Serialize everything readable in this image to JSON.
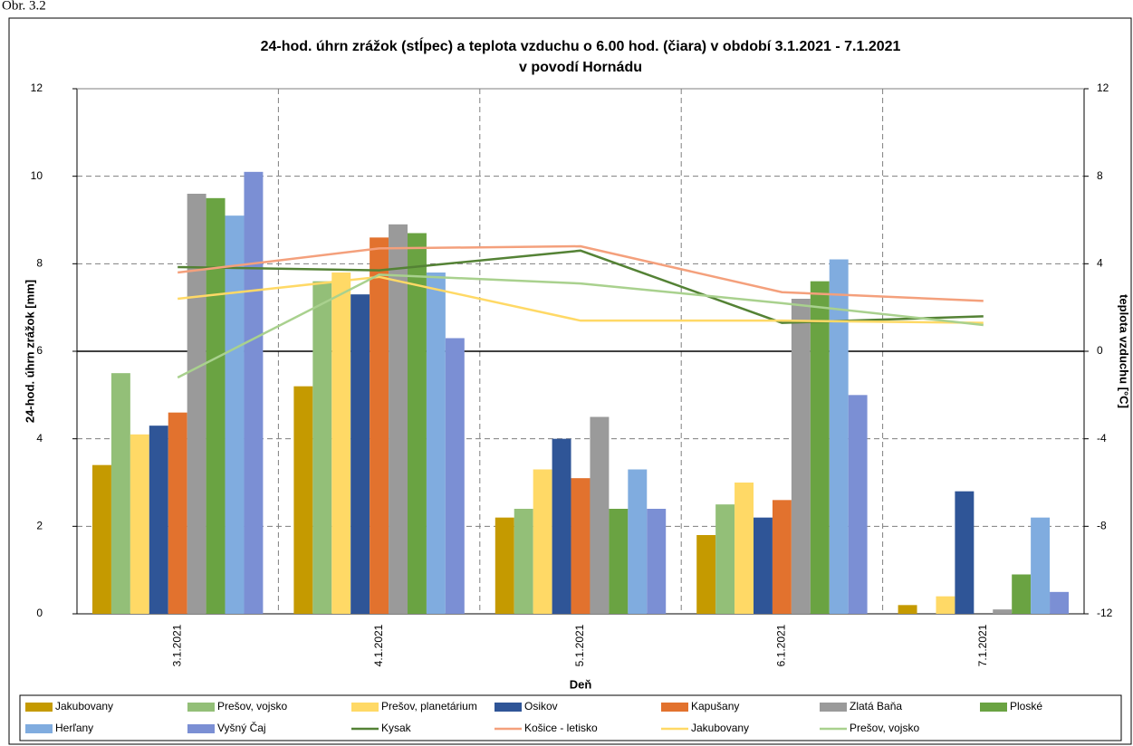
{
  "figure_label": "Obr. 3.2",
  "chart_data": {
    "type": "bar",
    "title": [
      "24-hod. úhrn zrážok (stĺpec) a teplota vzduchu o 6.00 hod. (čiara) v období 3.1.2021 - 7.1.2021",
      "v povodí  Hornádu"
    ],
    "x_label": "Deň",
    "y_label": "24-hod. úhrn zrážok [mm]",
    "y2_label": "teplota vzduchu [°C]",
    "categories": [
      "3.1.2021",
      "4.1.2021",
      "5.1.2021",
      "6.1.2021",
      "7.1.2021"
    ],
    "ylim": [
      0,
      12
    ],
    "yticks": [
      0,
      2,
      4,
      6,
      8,
      10,
      12
    ],
    "y2lim": [
      -12,
      12
    ],
    "y2ticks": [
      12,
      8,
      4,
      0,
      -4,
      -8,
      -12
    ],
    "grid": true,
    "legend": "bottom",
    "series": [
      {
        "name": "Jakubovany",
        "type": "bar",
        "color": "#c59a00",
        "values": [
          3.4,
          5.2,
          2.2,
          1.8,
          0.2
        ]
      },
      {
        "name": "Prešov, vojsko",
        "type": "bar",
        "color": "#93bf78",
        "values": [
          5.5,
          7.6,
          2.4,
          2.5,
          0
        ]
      },
      {
        "name": "Prešov, planetárium",
        "type": "bar",
        "color": "#ffd966",
        "values": [
          4.1,
          7.8,
          3.3,
          3.0,
          0.4
        ]
      },
      {
        "name": "Osikov",
        "type": "bar",
        "color": "#2f5597",
        "values": [
          4.3,
          7.3,
          4.0,
          2.2,
          2.8
        ]
      },
      {
        "name": "Kapušany",
        "type": "bar",
        "color": "#e2722e",
        "values": [
          4.6,
          8.6,
          3.1,
          2.6,
          0
        ]
      },
      {
        "name": "Zlatá Baňa",
        "type": "bar",
        "color": "#9a9a9a",
        "values": [
          9.6,
          8.9,
          4.5,
          7.2,
          0.1
        ]
      },
      {
        "name": "Ploské",
        "type": "bar",
        "color": "#6aa342",
        "values": [
          9.5,
          8.7,
          2.4,
          7.6,
          0.9
        ]
      },
      {
        "name": "Herľany",
        "type": "bar",
        "color": "#80acdf",
        "values": [
          9.1,
          7.8,
          3.3,
          8.1,
          2.2
        ]
      },
      {
        "name": "Vyšný Čaj",
        "type": "bar",
        "color": "#7b8fd4",
        "values": [
          10.1,
          6.3,
          2.4,
          5.0,
          0.5
        ]
      },
      {
        "name": "Kysak",
        "type": "line",
        "axis": "y2",
        "color": "#548235",
        "values": [
          3.85,
          3.7,
          4.6,
          1.3,
          1.6
        ]
      },
      {
        "name": "Košice - letisko",
        "type": "line",
        "axis": "y2",
        "color": "#f4a07c",
        "values": [
          3.6,
          4.7,
          4.8,
          2.7,
          2.3
        ]
      },
      {
        "name": "Jakubovany",
        "type": "line",
        "axis": "y2",
        "color": "#ffd966",
        "values": [
          2.4,
          3.4,
          1.4,
          1.4,
          1.3
        ]
      },
      {
        "name": "Prešov, vojsko",
        "type": "line",
        "axis": "y2",
        "color": "#a9d18e",
        "values": [
          -1.2,
          3.5,
          3.1,
          2.2,
          1.2
        ]
      }
    ]
  }
}
